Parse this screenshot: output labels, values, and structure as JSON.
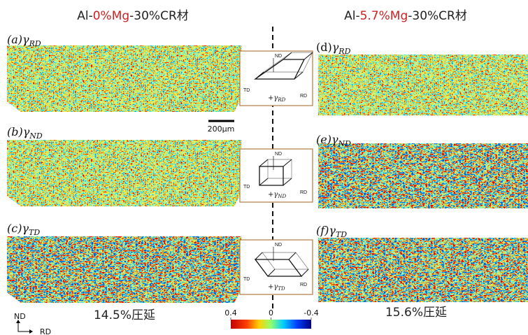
{
  "left_header": {
    "prefix": "Al-",
    "highlight": "0%Mg",
    "suffix": "-30%CR材"
  },
  "right_header": {
    "prefix": "Al-",
    "highlight": "5.7%Mg",
    "suffix": "-30%CR材"
  },
  "panels": [
    {
      "tag": "(a)",
      "symbol": "γ",
      "sub": "RD"
    },
    {
      "tag": "(b)",
      "symbol": "γ",
      "sub": "ND"
    },
    {
      "tag": "(c)",
      "symbol": "γ",
      "sub": "TD"
    },
    {
      "tag": "(d)",
      "symbol": "γ",
      "sub": "RD"
    },
    {
      "tag": "(e)",
      "symbol": "γ",
      "sub": "ND"
    },
    {
      "tag": "(f)",
      "symbol": "γ",
      "sub": "TD"
    }
  ],
  "schematics": [
    {
      "top": "ND",
      "left": "TD",
      "right": "RD",
      "shear": "+γ",
      "sub": "RD"
    },
    {
      "top": "ND",
      "left": "TD",
      "right": "RD",
      "shear": "+γ",
      "sub": "ND"
    },
    {
      "top": "ND",
      "left": "TD",
      "right": "RD",
      "shear": "+γ",
      "sub": "TD"
    }
  ],
  "scale_bar": "200μm",
  "left_footer": "14.5%圧延",
  "right_footer": "15.6%圧延",
  "axes": {
    "up": "ND",
    "right": "RD"
  },
  "colorbar": {
    "lim": [
      0.4,
      -0.4
    ],
    "ticks": [
      0.4,
      0,
      -0.4
    ]
  }
}
